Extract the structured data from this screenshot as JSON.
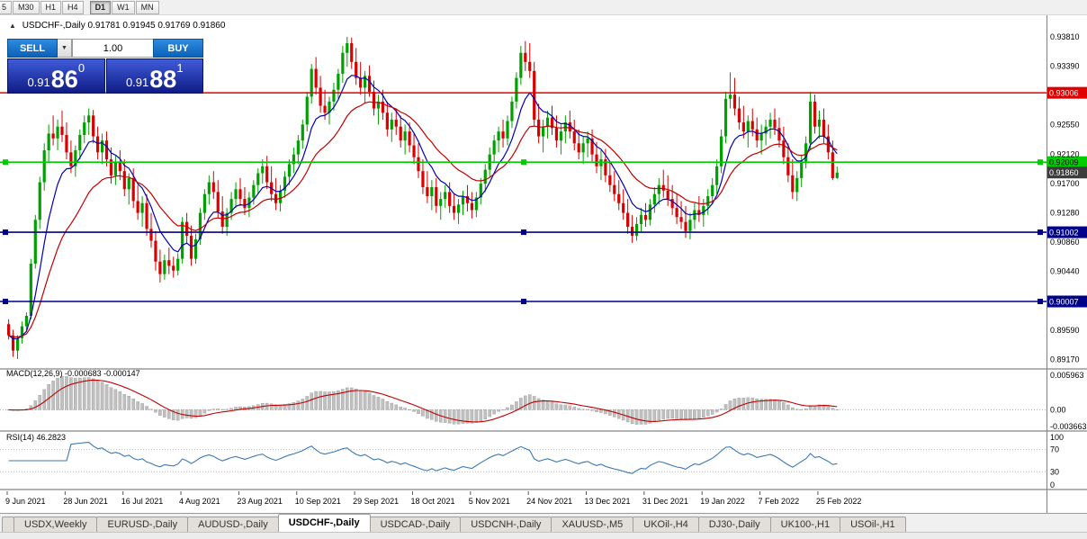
{
  "toolbar": {
    "timeframes": [
      "5",
      "M30",
      "H1",
      "H4",
      "D1",
      "W1",
      "MN"
    ],
    "active_timeframe": "D1"
  },
  "caption": {
    "symbol": "USDCHF-,Daily",
    "ohlc": "0.91781 0.91945 0.91769 0.91860"
  },
  "oct": {
    "sell_label": "SELL",
    "buy_label": "BUY",
    "volume": "1.00",
    "sell_price_small": "0.91",
    "sell_price_big": "86",
    "sell_price_sup": "0",
    "buy_price_small": "0.91",
    "buy_price_big": "88",
    "buy_price_sup": "1"
  },
  "bottom_tabs": {
    "items": [
      "USDX,Weekly",
      "EURUSD-,Daily",
      "AUDUSD-,Daily",
      "USDCHF-,Daily",
      "USDCAD-,Daily",
      "USDCNH-,Daily",
      "XAUUSD-,M5",
      "UKOil-,H4",
      "DJ30-,Daily",
      "UK100-,H1",
      "USOil-,H1"
    ],
    "active_index": 3
  },
  "chart_data": {
    "type": "candlestick",
    "symbol": "USDCHF-,Daily",
    "price_axis": {
      "min": 0.8905,
      "max": 0.9412,
      "ticks": [
        "0.93810",
        "0.93390",
        "0.92550",
        "0.92120",
        "0.91700",
        "0.91280",
        "0.90860",
        "0.90440",
        "0.89590",
        "0.89170"
      ]
    },
    "x_labels": [
      "9 Jun 2021",
      "28 Jun 2021",
      "16 Jul 2021",
      "4 Aug 2021",
      "23 Aug 2021",
      "10 Sep 2021",
      "29 Sep 2021",
      "18 Oct 2021",
      "5 Nov 2021",
      "24 Nov 2021",
      "13 Dec 2021",
      "31 Dec 2021",
      "19 Jan 2022",
      "7 Feb 2022",
      "25 Feb 2022"
    ],
    "label_every_n_bars": 13,
    "colors": {
      "up": "#00a000",
      "down": "#d80000",
      "background": "#ffffff",
      "axis_line": "#808080",
      "separator": "#9a9a9a"
    },
    "moving_averages": [
      {
        "period": 8,
        "color": "#0000b4"
      },
      {
        "period": 20,
        "color": "#c00000"
      }
    ],
    "levels": [
      {
        "value": 0.93006,
        "label": "0.93006",
        "color": "#e00000",
        "text_color": "#ffffff",
        "handles": false
      },
      {
        "value": 0.92009,
        "label": "0.92009",
        "color": "#00cc00",
        "text_color": "#000000",
        "handles": true
      },
      {
        "value": 0.91002,
        "label": "0.91002",
        "color": "#000088",
        "text_color": "#ffffff",
        "handles": true
      },
      {
        "value": 0.90007,
        "label": "0.90007",
        "color": "#000088",
        "text_color": "#ffffff",
        "handles": true
      }
    ],
    "current_price": {
      "value": 0.9186,
      "label": "0.91860",
      "color": "#3c3c3c",
      "text_color": "#ffffff"
    },
    "macd": {
      "label": "MACD(12,26,9)",
      "values": "-0.000683 -0.000147",
      "fast": 12,
      "slow": 26,
      "signal": 9,
      "y_ticks": [
        "0.005963",
        "0.00",
        "-0.003663"
      ],
      "hist_color": "#c0c0c0",
      "signal_color": "#c00000"
    },
    "rsi": {
      "label": "RSI(14)",
      "value": "46.2823",
      "period": 14,
      "levels": [
        70,
        30
      ],
      "y_ticks": [
        "100",
        "70",
        "30",
        "0"
      ],
      "color": "#3c78b4"
    },
    "candles": [
      [
        0.8968,
        0.8975,
        0.8946,
        0.8952
      ],
      [
        0.8952,
        0.896,
        0.8921,
        0.893
      ],
      [
        0.893,
        0.8952,
        0.8918,
        0.8948
      ],
      [
        0.8948,
        0.8972,
        0.894,
        0.8965
      ],
      [
        0.8965,
        0.8985,
        0.8958,
        0.898
      ],
      [
        0.898,
        0.9062,
        0.8975,
        0.9055
      ],
      [
        0.9055,
        0.9125,
        0.9048,
        0.9118
      ],
      [
        0.9118,
        0.918,
        0.9105,
        0.9172
      ],
      [
        0.9172,
        0.9228,
        0.916,
        0.9218
      ],
      [
        0.9218,
        0.9255,
        0.92,
        0.9242
      ],
      [
        0.9242,
        0.9268,
        0.9225,
        0.9235
      ],
      [
        0.9235,
        0.9262,
        0.9218,
        0.9252
      ],
      [
        0.9252,
        0.9275,
        0.923,
        0.924
      ],
      [
        0.924,
        0.9258,
        0.9205,
        0.9215
      ],
      [
        0.9215,
        0.9232,
        0.9185,
        0.9195
      ],
      [
        0.9195,
        0.9225,
        0.918,
        0.9218
      ],
      [
        0.9218,
        0.9248,
        0.9205,
        0.924
      ],
      [
        0.924,
        0.9268,
        0.9228,
        0.9258
      ],
      [
        0.9258,
        0.9278,
        0.924,
        0.9268
      ],
      [
        0.9268,
        0.9276,
        0.9228,
        0.9238
      ],
      [
        0.9238,
        0.9252,
        0.9205,
        0.9215
      ],
      [
        0.9215,
        0.9242,
        0.9198,
        0.9232
      ],
      [
        0.9232,
        0.9245,
        0.9195,
        0.9205
      ],
      [
        0.9205,
        0.9222,
        0.917,
        0.9182
      ],
      [
        0.9182,
        0.921,
        0.9168,
        0.92
      ],
      [
        0.92,
        0.9218,
        0.9175,
        0.9188
      ],
      [
        0.9188,
        0.9205,
        0.9152,
        0.9162
      ],
      [
        0.9162,
        0.9185,
        0.914,
        0.9178
      ],
      [
        0.9178,
        0.9192,
        0.9135,
        0.9145
      ],
      [
        0.9145,
        0.9168,
        0.9118,
        0.9128
      ],
      [
        0.9128,
        0.9152,
        0.9108,
        0.9142
      ],
      [
        0.9142,
        0.9155,
        0.9095,
        0.9105
      ],
      [
        0.9105,
        0.9128,
        0.9078,
        0.9088
      ],
      [
        0.9088,
        0.9102,
        0.9045,
        0.9058
      ],
      [
        0.9058,
        0.9075,
        0.9028,
        0.904
      ],
      [
        0.904,
        0.9068,
        0.9032,
        0.906
      ],
      [
        0.906,
        0.9078,
        0.904,
        0.9052
      ],
      [
        0.9052,
        0.9065,
        0.9035,
        0.9045
      ],
      [
        0.9045,
        0.907,
        0.9038,
        0.9062
      ],
      [
        0.9062,
        0.9122,
        0.9055,
        0.9115
      ],
      [
        0.9115,
        0.9128,
        0.9085,
        0.9095
      ],
      [
        0.9095,
        0.911,
        0.9052,
        0.9062
      ],
      [
        0.9062,
        0.9098,
        0.9055,
        0.909
      ],
      [
        0.909,
        0.9135,
        0.9082,
        0.9128
      ],
      [
        0.9128,
        0.9162,
        0.9118,
        0.9155
      ],
      [
        0.9155,
        0.9182,
        0.914,
        0.9172
      ],
      [
        0.9172,
        0.9188,
        0.9148,
        0.9158
      ],
      [
        0.9158,
        0.9175,
        0.912,
        0.913
      ],
      [
        0.913,
        0.9152,
        0.9098,
        0.9108
      ],
      [
        0.9108,
        0.9135,
        0.9095,
        0.9128
      ],
      [
        0.9128,
        0.9158,
        0.9118,
        0.9148
      ],
      [
        0.9148,
        0.9172,
        0.9135,
        0.9162
      ],
      [
        0.9162,
        0.9178,
        0.9138,
        0.9148
      ],
      [
        0.9148,
        0.9165,
        0.9125,
        0.9135
      ],
      [
        0.9135,
        0.9158,
        0.9122,
        0.915
      ],
      [
        0.915,
        0.9175,
        0.914,
        0.9168
      ],
      [
        0.9168,
        0.9192,
        0.9155,
        0.9185
      ],
      [
        0.9185,
        0.9205,
        0.917,
        0.9195
      ],
      [
        0.9195,
        0.921,
        0.9162,
        0.9172
      ],
      [
        0.9172,
        0.9195,
        0.9145,
        0.9155
      ],
      [
        0.9155,
        0.9178,
        0.9132,
        0.9142
      ],
      [
        0.9142,
        0.9168,
        0.913,
        0.916
      ],
      [
        0.916,
        0.9188,
        0.915,
        0.918
      ],
      [
        0.918,
        0.9205,
        0.9168,
        0.9198
      ],
      [
        0.9198,
        0.9222,
        0.9185,
        0.9212
      ],
      [
        0.9212,
        0.924,
        0.9198,
        0.9232
      ],
      [
        0.9232,
        0.9262,
        0.922,
        0.9255
      ],
      [
        0.9255,
        0.9302,
        0.9245,
        0.9295
      ],
      [
        0.9295,
        0.9342,
        0.9285,
        0.9335
      ],
      [
        0.9335,
        0.9352,
        0.9298,
        0.9308
      ],
      [
        0.9308,
        0.9325,
        0.9272,
        0.9282
      ],
      [
        0.9282,
        0.9305,
        0.9262,
        0.9272
      ],
      [
        0.9272,
        0.9295,
        0.9255,
        0.9288
      ],
      [
        0.9288,
        0.9315,
        0.9275,
        0.9305
      ],
      [
        0.9305,
        0.9335,
        0.9292,
        0.9328
      ],
      [
        0.9328,
        0.9368,
        0.9315,
        0.9358
      ],
      [
        0.9358,
        0.9381,
        0.9338,
        0.9372
      ],
      [
        0.9372,
        0.938,
        0.9335,
        0.9345
      ],
      [
        0.9345,
        0.9365,
        0.9312,
        0.9322
      ],
      [
        0.9322,
        0.9345,
        0.9298,
        0.9308
      ],
      [
        0.9308,
        0.9332,
        0.9285,
        0.9325
      ],
      [
        0.9325,
        0.934,
        0.9295,
        0.9302
      ],
      [
        0.9302,
        0.9318,
        0.9268,
        0.9278
      ],
      [
        0.9278,
        0.9298,
        0.9255,
        0.9288
      ],
      [
        0.9288,
        0.9305,
        0.9262,
        0.9272
      ],
      [
        0.9272,
        0.9288,
        0.9238,
        0.9248
      ],
      [
        0.9248,
        0.9272,
        0.923,
        0.9262
      ],
      [
        0.9262,
        0.9278,
        0.924,
        0.9252
      ],
      [
        0.9252,
        0.9268,
        0.9222,
        0.9232
      ],
      [
        0.9232,
        0.9255,
        0.9212,
        0.9245
      ],
      [
        0.9245,
        0.9258,
        0.9215,
        0.9225
      ],
      [
        0.9225,
        0.9242,
        0.9198,
        0.9208
      ],
      [
        0.9208,
        0.9228,
        0.9178,
        0.9188
      ],
      [
        0.9188,
        0.9205,
        0.9155,
        0.9165
      ],
      [
        0.9165,
        0.9188,
        0.9142,
        0.9152
      ],
      [
        0.9152,
        0.9175,
        0.9132,
        0.9165
      ],
      [
        0.9165,
        0.9178,
        0.9128,
        0.9138
      ],
      [
        0.9138,
        0.9158,
        0.9118,
        0.9148
      ],
      [
        0.9148,
        0.9168,
        0.9135,
        0.9158
      ],
      [
        0.9158,
        0.9172,
        0.9128,
        0.9138
      ],
      [
        0.9138,
        0.9155,
        0.9118,
        0.9128
      ],
      [
        0.9128,
        0.9148,
        0.9112,
        0.914
      ],
      [
        0.914,
        0.916,
        0.9125,
        0.9152
      ],
      [
        0.9152,
        0.9168,
        0.913,
        0.9142
      ],
      [
        0.9142,
        0.9158,
        0.912,
        0.9132
      ],
      [
        0.9132,
        0.9158,
        0.9122,
        0.915
      ],
      [
        0.915,
        0.9178,
        0.914,
        0.917
      ],
      [
        0.917,
        0.9198,
        0.9158,
        0.919
      ],
      [
        0.919,
        0.9222,
        0.918,
        0.9212
      ],
      [
        0.9212,
        0.924,
        0.92,
        0.9232
      ],
      [
        0.9232,
        0.9252,
        0.9215,
        0.9245
      ],
      [
        0.9245,
        0.9262,
        0.9222,
        0.9235
      ],
      [
        0.9235,
        0.9268,
        0.9225,
        0.926
      ],
      [
        0.926,
        0.9295,
        0.925,
        0.9288
      ],
      [
        0.9288,
        0.933,
        0.9278,
        0.9322
      ],
      [
        0.9322,
        0.9368,
        0.9312,
        0.9358
      ],
      [
        0.9358,
        0.9375,
        0.9332,
        0.9345
      ],
      [
        0.9345,
        0.9372,
        0.9322,
        0.9332
      ],
      [
        0.9332,
        0.9345,
        0.9252,
        0.9262
      ],
      [
        0.9262,
        0.9285,
        0.9228,
        0.9238
      ],
      [
        0.9238,
        0.9262,
        0.9215,
        0.9252
      ],
      [
        0.9252,
        0.9275,
        0.9235,
        0.9265
      ],
      [
        0.9265,
        0.9282,
        0.924,
        0.925
      ],
      [
        0.925,
        0.9268,
        0.9222,
        0.9232
      ],
      [
        0.9232,
        0.9255,
        0.9212,
        0.9245
      ],
      [
        0.9245,
        0.9268,
        0.9228,
        0.9258
      ],
      [
        0.9258,
        0.9275,
        0.9235,
        0.9245
      ],
      [
        0.9245,
        0.9262,
        0.9218,
        0.9228
      ],
      [
        0.9228,
        0.9248,
        0.9205,
        0.9215
      ],
      [
        0.9215,
        0.9238,
        0.9198,
        0.9228
      ],
      [
        0.9228,
        0.9245,
        0.9208,
        0.9235
      ],
      [
        0.9235,
        0.9248,
        0.9202,
        0.9212
      ],
      [
        0.9212,
        0.923,
        0.9185,
        0.9195
      ],
      [
        0.9195,
        0.9218,
        0.9175,
        0.9205
      ],
      [
        0.9205,
        0.922,
        0.9172,
        0.9182
      ],
      [
        0.9182,
        0.92,
        0.9158,
        0.9168
      ],
      [
        0.9168,
        0.9188,
        0.9145,
        0.9155
      ],
      [
        0.9155,
        0.9175,
        0.9132,
        0.9142
      ],
      [
        0.9142,
        0.9162,
        0.9118,
        0.9128
      ],
      [
        0.9128,
        0.9148,
        0.9098,
        0.9108
      ],
      [
        0.9108,
        0.9125,
        0.9085,
        0.9095
      ],
      [
        0.9095,
        0.9122,
        0.9088,
        0.9112
      ],
      [
        0.9112,
        0.9135,
        0.91,
        0.9125
      ],
      [
        0.9125,
        0.9142,
        0.9108,
        0.9118
      ],
      [
        0.9118,
        0.9148,
        0.911,
        0.914
      ],
      [
        0.914,
        0.9165,
        0.9128,
        0.9155
      ],
      [
        0.9155,
        0.9178,
        0.914,
        0.9168
      ],
      [
        0.9168,
        0.919,
        0.915,
        0.916
      ],
      [
        0.916,
        0.9182,
        0.9138,
        0.9148
      ],
      [
        0.9148,
        0.9168,
        0.9125,
        0.9135
      ],
      [
        0.9135,
        0.9155,
        0.9112,
        0.9122
      ],
      [
        0.9122,
        0.9145,
        0.9105,
        0.9115
      ],
      [
        0.9115,
        0.9138,
        0.9092,
        0.9102
      ],
      [
        0.9102,
        0.9128,
        0.909,
        0.9118
      ],
      [
        0.9118,
        0.9142,
        0.9105,
        0.9132
      ],
      [
        0.9132,
        0.9152,
        0.9115,
        0.9125
      ],
      [
        0.9125,
        0.9148,
        0.9108,
        0.9138
      ],
      [
        0.9138,
        0.9162,
        0.9125,
        0.9152
      ],
      [
        0.9152,
        0.9178,
        0.914,
        0.9168
      ],
      [
        0.9168,
        0.9205,
        0.9155,
        0.9195
      ],
      [
        0.9195,
        0.9248,
        0.9185,
        0.9238
      ],
      [
        0.9238,
        0.9302,
        0.9228,
        0.9292
      ],
      [
        0.9292,
        0.933,
        0.9278,
        0.9298
      ],
      [
        0.9298,
        0.9322,
        0.9268,
        0.9278
      ],
      [
        0.9278,
        0.9295,
        0.9248,
        0.9258
      ],
      [
        0.9258,
        0.9282,
        0.9235,
        0.9245
      ],
      [
        0.9245,
        0.9268,
        0.9222,
        0.926
      ],
      [
        0.926,
        0.9278,
        0.9238,
        0.9248
      ],
      [
        0.9248,
        0.9265,
        0.9222,
        0.9232
      ],
      [
        0.9232,
        0.9255,
        0.9212,
        0.9242
      ],
      [
        0.9242,
        0.9262,
        0.9225,
        0.9252
      ],
      [
        0.9252,
        0.9272,
        0.9235,
        0.9262
      ],
      [
        0.9262,
        0.9278,
        0.924,
        0.925
      ],
      [
        0.925,
        0.9265,
        0.9222,
        0.9232
      ],
      [
        0.9232,
        0.9252,
        0.9198,
        0.9208
      ],
      [
        0.9208,
        0.9228,
        0.9172,
        0.9182
      ],
      [
        0.9182,
        0.9205,
        0.9148,
        0.9158
      ],
      [
        0.9158,
        0.9188,
        0.9145,
        0.9178
      ],
      [
        0.9178,
        0.9212,
        0.9165,
        0.9202
      ],
      [
        0.9202,
        0.9238,
        0.9192,
        0.9228
      ],
      [
        0.9228,
        0.9302,
        0.9218,
        0.9288
      ],
      [
        0.9288,
        0.9298,
        0.9242,
        0.9252
      ],
      [
        0.9252,
        0.9275,
        0.9235,
        0.9262
      ],
      [
        0.9262,
        0.9278,
        0.9228,
        0.9238
      ],
      [
        0.9238,
        0.9255,
        0.9205,
        0.9215
      ],
      [
        0.9215,
        0.9232,
        0.9175,
        0.9178
      ],
      [
        0.91781,
        0.91945,
        0.91769,
        0.9186
      ]
    ]
  }
}
